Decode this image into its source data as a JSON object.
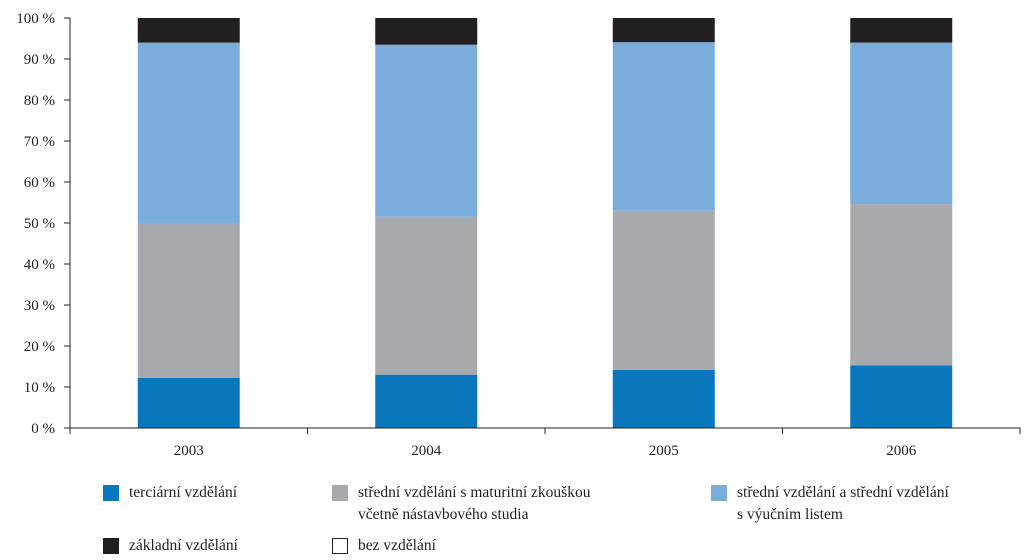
{
  "chart_data": {
    "type": "bar",
    "stacked": true,
    "categories": [
      "2003",
      "2004",
      "2005",
      "2006"
    ],
    "series": [
      {
        "name": "terciární vzdělání",
        "color": "#0a77bd",
        "values": [
          12.2,
          13.0,
          14.2,
          15.3
        ]
      },
      {
        "name": "střední vzdělání s maturitní zkouškou\nvčetně nástavbového studia",
        "color": "#a7a9ac",
        "values": [
          37.8,
          38.5,
          38.8,
          39.3
        ]
      },
      {
        "name": "střední vzdělání a střední vzdělání\ns výučním listem",
        "color": "#7aaddc",
        "values": [
          44.0,
          42.0,
          41.1,
          39.4
        ]
      },
      {
        "name": "základní vzdělání",
        "color": "#231f20",
        "values": [
          6.0,
          6.5,
          5.9,
          6.0
        ]
      },
      {
        "name": "bez vzdělání",
        "color": "#ffffff",
        "values": [
          0.0,
          0.0,
          0.0,
          0.0
        ]
      }
    ],
    "yticks": [
      "0 %",
      "10 %",
      "20 %",
      "30 %",
      "40 %",
      "50 %",
      "60 %",
      "70 %",
      "80 %",
      "90 %",
      "100 %"
    ],
    "ylim": [
      0,
      100
    ],
    "grid": false,
    "legend_position": "bottom",
    "title": ""
  }
}
